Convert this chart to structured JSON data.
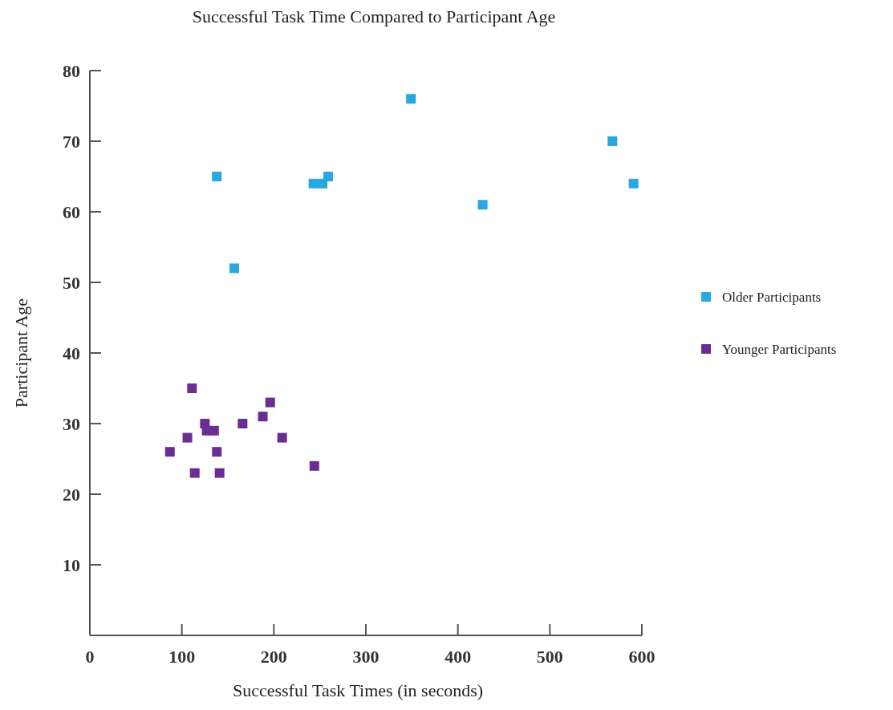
{
  "chart_data": {
    "type": "scatter",
    "title": "Successful Task Time Compared to Participant Age",
    "xlabel": "Successful Task Times (in seconds)",
    "ylabel": "Participant Age",
    "xlim": [
      0,
      600
    ],
    "xticks": [
      0,
      100,
      200,
      300,
      400,
      500,
      600
    ],
    "ylim": [
      0,
      80
    ],
    "yticks": [
      10,
      20,
      30,
      40,
      50,
      60,
      70,
      80
    ],
    "marker": "square",
    "legend": "right",
    "grid": false,
    "series": [
      {
        "name": "Older Participants",
        "color": "#29a8e0",
        "x": [
          138,
          157,
          243,
          253,
          259,
          349,
          427,
          568,
          591
        ],
        "values": [
          65,
          52,
          64,
          64,
          65,
          76,
          61,
          70,
          64
        ]
      },
      {
        "name": "Younger Participants",
        "color": "#6a2d91",
        "x": [
          87,
          111,
          106,
          125,
          127,
          135,
          114,
          138,
          141,
          166,
          188,
          196,
          209,
          244
        ],
        "values": [
          26,
          35,
          28,
          30,
          29,
          29,
          23,
          26,
          23,
          30,
          31,
          33,
          28,
          24
        ]
      }
    ]
  }
}
